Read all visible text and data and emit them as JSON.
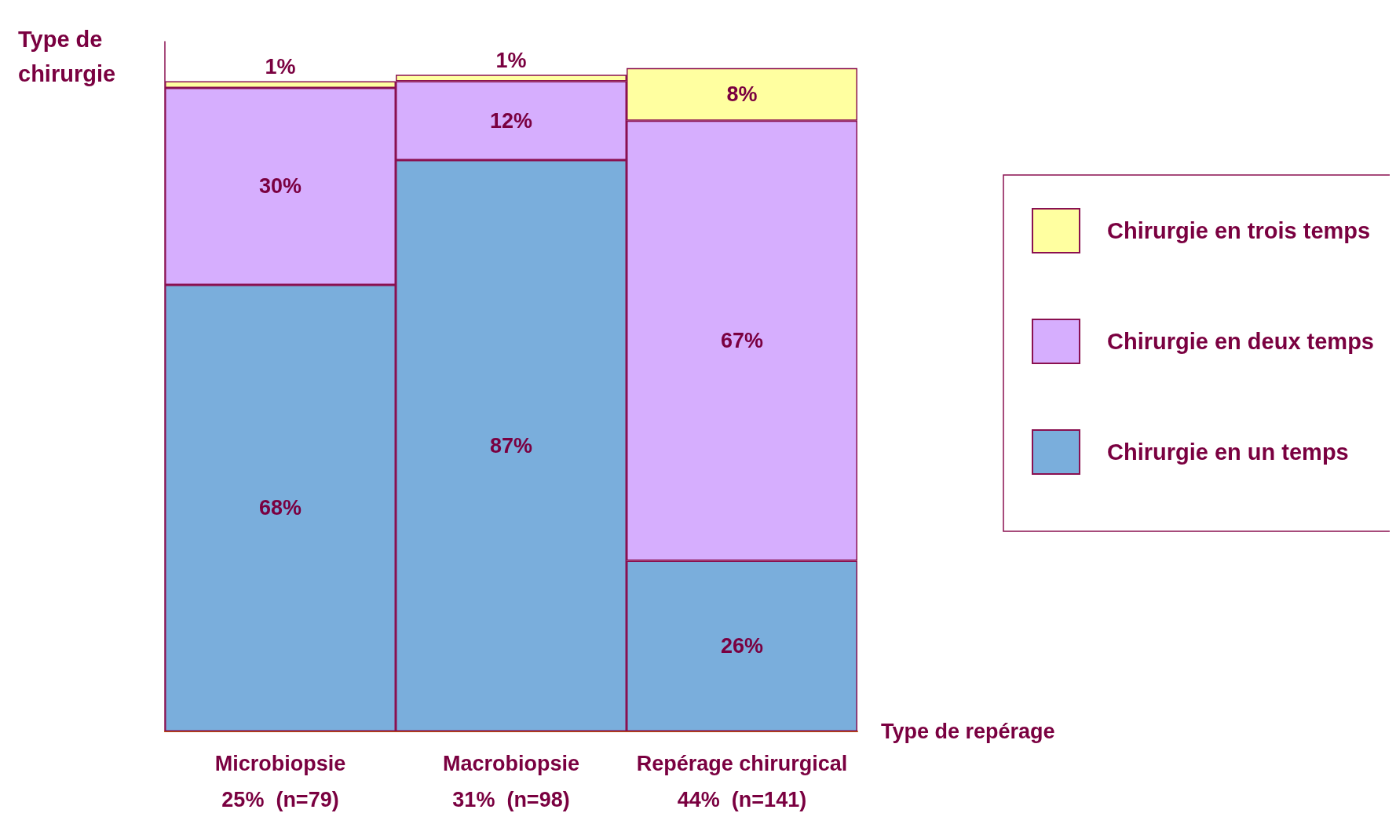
{
  "chart_data": {
    "type": "bar",
    "stacked": true,
    "legend": "right",
    "xlabel": "Type de repérage",
    "ylabel": "Type de chirurgie",
    "categories": [
      "Microbiopsie\n25%  (n=79)",
      "Macrobiopsie\n31%  (n=98)",
      "Repérage chirurgical\n44%  (n=141)"
    ],
    "series": [
      {
        "name": "Chirurgie en un temps",
        "color": "#7aaedc",
        "values": [
          68,
          87,
          26
        ],
        "value_labels": [
          "68%",
          "87%",
          "26%"
        ]
      },
      {
        "name": "Chirurgie en deux temps",
        "color": "#d6aefe",
        "values": [
          30,
          12,
          67
        ],
        "value_labels": [
          "30%",
          "12%",
          "67%"
        ]
      },
      {
        "name": "Chirurgie en trois temps",
        "color": "#ffffa0",
        "values": [
          1,
          1,
          8
        ],
        "value_labels": [
          "1%",
          "1%",
          "8%"
        ]
      }
    ]
  }
}
